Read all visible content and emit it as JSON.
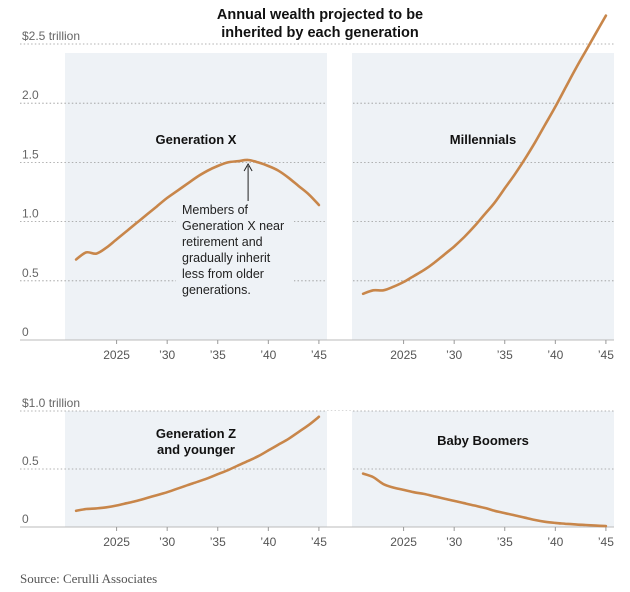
{
  "chart_data": {
    "type": "line",
    "title": "Annual wealth projected to be inherited by each generation",
    "source": "Source: Cerulli Associates",
    "line_color": "#c8864a",
    "background_color": "#eef2f6",
    "rows": [
      {
        "row": 0,
        "unit_label": "$2.5 trillion",
        "ylim": [
          0,
          2.5
        ],
        "y_ticks": [
          0,
          0.5,
          1.0,
          1.5,
          2.0,
          2.5
        ],
        "y_tick_labels": [
          "0",
          "0.5",
          "1.0",
          "1.5",
          "2.0",
          ""
        ],
        "x_tick_labels": [
          "2025",
          "’30",
          "’35",
          "’40",
          "’45"
        ]
      },
      {
        "row": 1,
        "unit_label": "$1.0 trillion",
        "ylim": [
          0,
          1.0
        ],
        "y_ticks": [
          0,
          0.5,
          1.0
        ],
        "y_tick_labels": [
          "0",
          "0.5",
          ""
        ],
        "x_tick_labels": [
          "2025",
          "’30",
          "’35",
          "’40",
          "’45"
        ]
      }
    ],
    "x_ticks": [
      2025,
      2030,
      2035,
      2040,
      2045
    ],
    "xlim": [
      2019.9,
      2045.8
    ],
    "panels": [
      {
        "name": "Generation X",
        "label_lines": [
          "Generation X"
        ],
        "row": 0,
        "col": 0,
        "x": [
          2021,
          2022,
          2023,
          2024,
          2025,
          2026,
          2027,
          2028,
          2029,
          2030,
          2031,
          2032,
          2033,
          2034,
          2035,
          2036,
          2037,
          2038,
          2039,
          2040,
          2041,
          2042,
          2043,
          2044,
          2045
        ],
        "values": [
          0.68,
          0.74,
          0.73,
          0.78,
          0.85,
          0.92,
          0.99,
          1.06,
          1.13,
          1.2,
          1.26,
          1.32,
          1.38,
          1.43,
          1.47,
          1.5,
          1.51,
          1.52,
          1.5,
          1.47,
          1.43,
          1.37,
          1.3,
          1.23,
          1.14
        ],
        "annotation": {
          "lines": [
            "Members of",
            "Generation X near",
            "retirement and",
            "gradually inherit",
            "less from older",
            "generations."
          ],
          "points_to_x": 2038,
          "points_to_y": 1.52
        }
      },
      {
        "name": "Millennials",
        "label_lines": [
          "Millennials"
        ],
        "row": 0,
        "col": 1,
        "x": [
          2021,
          2022,
          2023,
          2024,
          2025,
          2026,
          2027,
          2028,
          2029,
          2030,
          2031,
          2032,
          2033,
          2034,
          2035,
          2036,
          2037,
          2038,
          2039,
          2040,
          2041,
          2042,
          2043,
          2044,
          2045
        ],
        "values": [
          0.39,
          0.42,
          0.42,
          0.45,
          0.49,
          0.54,
          0.59,
          0.65,
          0.72,
          0.79,
          0.87,
          0.96,
          1.06,
          1.16,
          1.28,
          1.4,
          1.53,
          1.67,
          1.82,
          1.97,
          2.13,
          2.29,
          2.44,
          2.59,
          2.74
        ]
      },
      {
        "name": "Generation Z and younger",
        "label_lines": [
          "Generation Z",
          "and younger"
        ],
        "row": 1,
        "col": 0,
        "x": [
          2021,
          2022,
          2023,
          2024,
          2025,
          2026,
          2027,
          2028,
          2029,
          2030,
          2031,
          2032,
          2033,
          2034,
          2035,
          2036,
          2037,
          2038,
          2039,
          2040,
          2041,
          2042,
          2043,
          2044,
          2045
        ],
        "values": [
          0.14,
          0.155,
          0.16,
          0.17,
          0.185,
          0.205,
          0.225,
          0.25,
          0.275,
          0.3,
          0.33,
          0.36,
          0.39,
          0.42,
          0.455,
          0.49,
          0.53,
          0.57,
          0.61,
          0.66,
          0.71,
          0.76,
          0.82,
          0.88,
          0.95
        ]
      },
      {
        "name": "Baby Boomers",
        "label_lines": [
          "Baby Boomers"
        ],
        "row": 1,
        "col": 1,
        "x": [
          2021,
          2022,
          2023,
          2024,
          2025,
          2026,
          2027,
          2028,
          2029,
          2030,
          2031,
          2032,
          2033,
          2034,
          2035,
          2036,
          2037,
          2038,
          2039,
          2040,
          2041,
          2042,
          2043,
          2044,
          2045
        ],
        "values": [
          0.46,
          0.43,
          0.37,
          0.34,
          0.32,
          0.3,
          0.285,
          0.265,
          0.245,
          0.225,
          0.205,
          0.185,
          0.165,
          0.14,
          0.12,
          0.1,
          0.08,
          0.06,
          0.045,
          0.035,
          0.028,
          0.022,
          0.017,
          0.012,
          0.008
        ]
      }
    ]
  }
}
